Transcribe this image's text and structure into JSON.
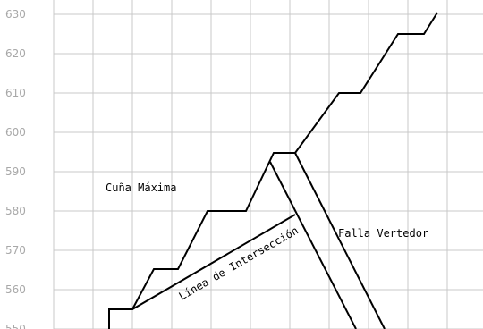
{
  "y_axis": {
    "tick_labels": [
      "630",
      "620",
      "610",
      "600",
      "590",
      "580",
      "570",
      "560",
      "550"
    ]
  },
  "labels": {
    "wedge": "Cuña Máxima",
    "intersection": "Línea de Intersección",
    "fault": "Falla Vertedor"
  }
}
